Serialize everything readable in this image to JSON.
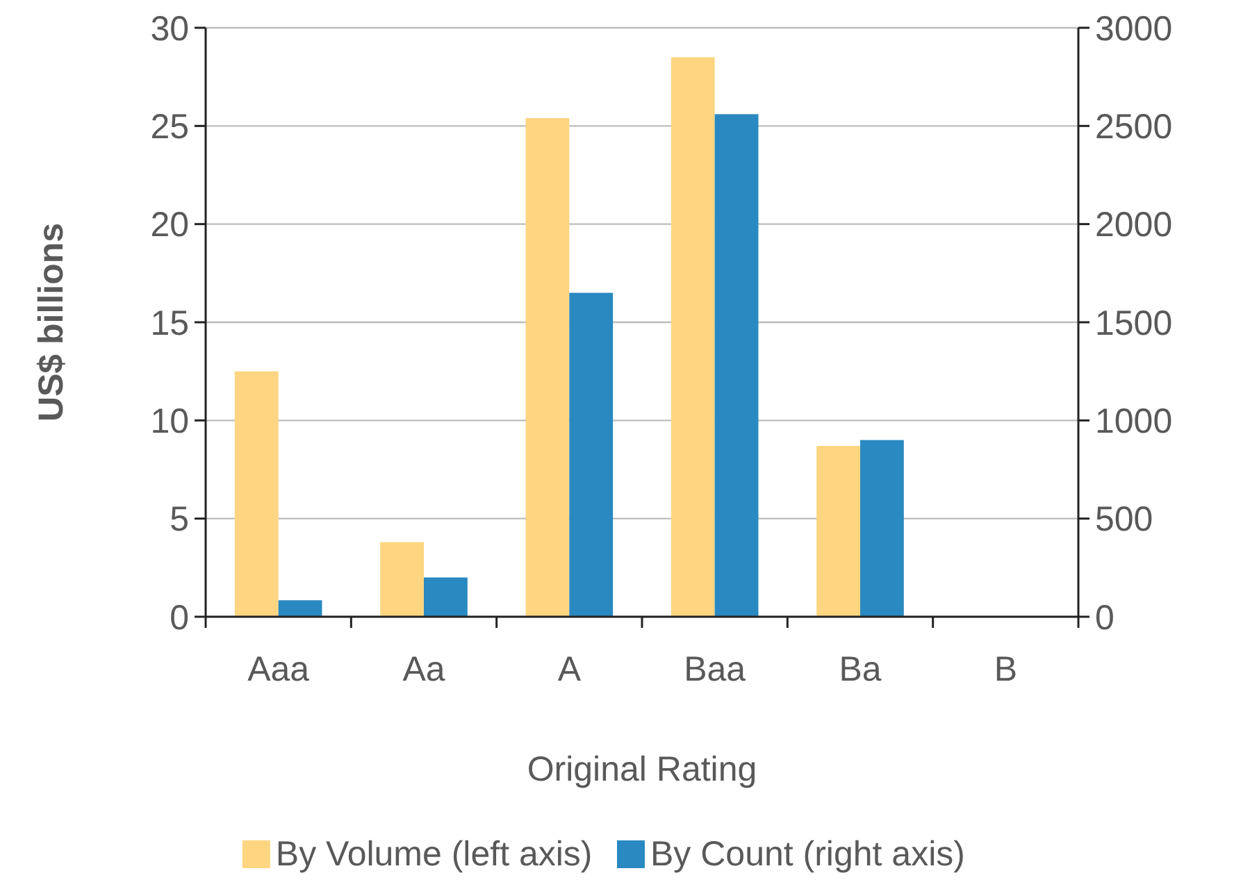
{
  "chart_data": {
    "type": "bar",
    "xlabel": "Original Rating",
    "ylabel": "US$ billions",
    "categories": [
      "Aaa",
      "Aa",
      "A",
      "Baa",
      "Ba",
      "B"
    ],
    "series": [
      {
        "name": "By Volume (left axis)",
        "color": "#fed580",
        "values": [
          12.5,
          3.8,
          25.4,
          28.5,
          8.7,
          0
        ]
      },
      {
        "name": "By Count (right axis)",
        "color": "#2a89c0",
        "axis": "y2",
        "values": [
          84,
          200,
          1650,
          2560,
          900,
          0
        ]
      }
    ],
    "ylim": [
      0,
      30
    ],
    "yticks": [
      0,
      5,
      10,
      15,
      20,
      25,
      30
    ],
    "y2lim": [
      0,
      3000
    ],
    "y2ticks": [
      0,
      500,
      1000,
      1500,
      2000,
      2500,
      3000
    ],
    "grid": "y",
    "legend": "bottom"
  }
}
